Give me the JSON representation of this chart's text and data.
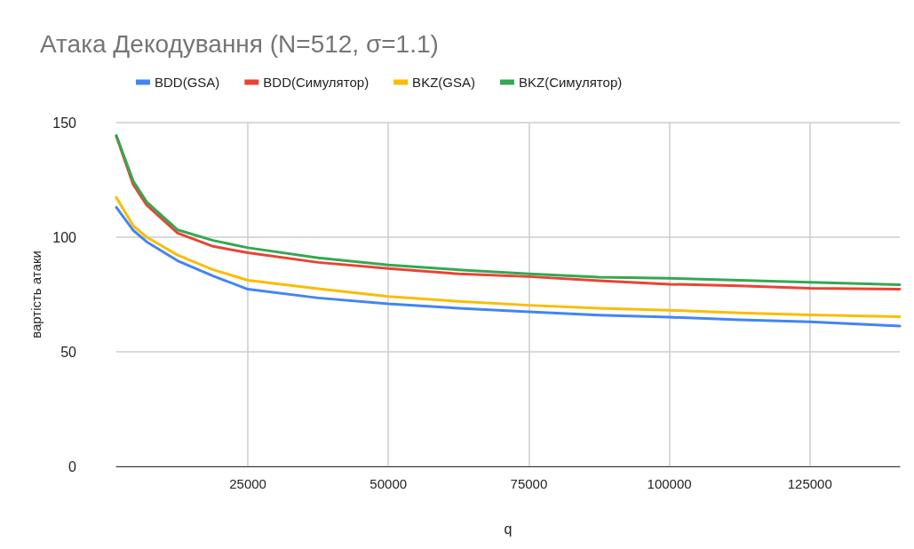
{
  "chart_data": {
    "type": "line",
    "title": "Атака Декодування (N=512, σ=1.1)",
    "xlabel": "q",
    "ylabel": "вартість атаки",
    "x": [
      1600,
      4600,
      7000,
      12500,
      18800,
      25000,
      37500,
      50000,
      62500,
      75000,
      87500,
      100000,
      112500,
      125000,
      141000
    ],
    "series": [
      {
        "name": "BDD(GSA)",
        "color": "#4285f4",
        "values": [
          113,
          103,
          98,
          89.7,
          83.1,
          77.3,
          73.5,
          70.9,
          69,
          67.4,
          66,
          65.1,
          64,
          63.1,
          61.2
        ]
      },
      {
        "name": "BDD(Симулятор)",
        "color": "#ea4335",
        "values": [
          144,
          123,
          114,
          101.8,
          96,
          93.2,
          89,
          86.3,
          84,
          82.8,
          81,
          79.5,
          78.8,
          77.7,
          77.3
        ]
      },
      {
        "name": "BKZ(GSA)",
        "color": "#fbbc04",
        "values": [
          117.3,
          105,
          100,
          92.2,
          85.8,
          81.2,
          77.5,
          74.1,
          72,
          70.3,
          69,
          68.1,
          67,
          66.1,
          65.3
        ]
      },
      {
        "name": "BKZ(Симулятор)",
        "color": "#34a853",
        "values": [
          144.4,
          124.5,
          115.4,
          103.2,
          98.6,
          95.4,
          91,
          87.9,
          85.8,
          84,
          82.6,
          82.1,
          81.2,
          80.3,
          79.3
        ]
      }
    ],
    "xlim": [
      1600,
      141000
    ],
    "xticks": [
      25000,
      50000,
      75000,
      100000,
      125000
    ],
    "ylim": [
      0,
      150
    ],
    "yticks": [
      0,
      50,
      100,
      150
    ],
    "grid": true,
    "legend": "top",
    "marker": "none",
    "line_style": "solid"
  }
}
